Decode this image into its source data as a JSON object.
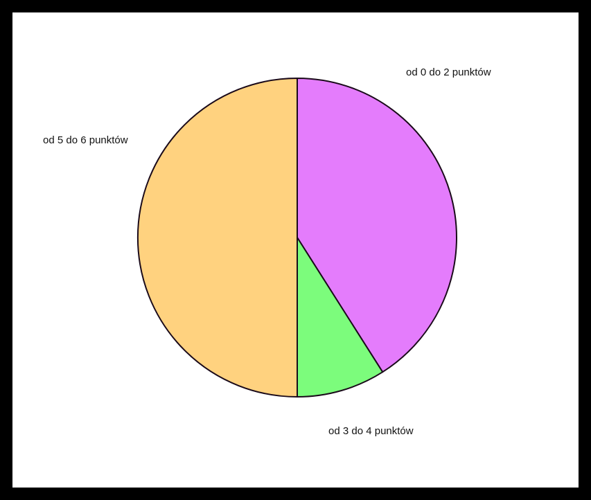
{
  "chart_data": {
    "type": "pie",
    "title": "",
    "start_angle_deg": 0,
    "direction": "clockwise",
    "slices": [
      {
        "label": "od 0 do 2 punktów",
        "value": 41,
        "color": "#E47CFC"
      },
      {
        "label": "od 3 do 4 punktów",
        "value": 9,
        "color": "#7CFC7C"
      },
      {
        "label": "od 5 do 6 punktów",
        "value": 50,
        "color": "#FFD27F"
      }
    ],
    "slice_border_color": "#1a0a1a",
    "legend": "none"
  }
}
